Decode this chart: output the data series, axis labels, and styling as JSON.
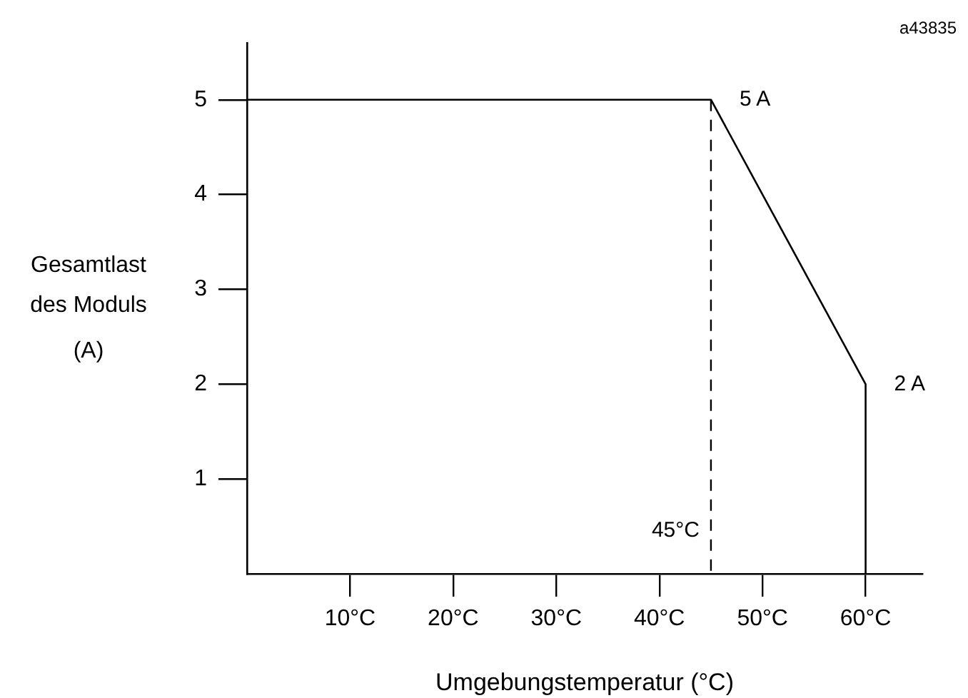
{
  "chart_data": {
    "type": "line",
    "xlabel": "Umgebungstemperatur (°C)",
    "ylabel": "Gesamtlast\ndes Moduls\n(A)",
    "x": [
      0,
      45,
      60,
      60
    ],
    "values": [
      5,
      5,
      2,
      0
    ],
    "color": "#000000",
    "xlim": [
      0,
      65.5
    ],
    "xticks": [
      {
        "value": 10,
        "label": "10°C"
      },
      {
        "value": 20,
        "label": "20°C"
      },
      {
        "value": 30,
        "label": "30°C"
      },
      {
        "value": 40,
        "label": "40°C"
      },
      {
        "value": 50,
        "label": "50°C"
      },
      {
        "value": 60,
        "label": "60°C"
      }
    ],
    "ylim": [
      0,
      5.6
    ],
    "yticks": [
      1,
      2,
      3,
      4,
      5
    ],
    "grid": false,
    "marker": "none",
    "line_style": "solid",
    "ref_lines": [
      {
        "axis": "x",
        "value": 45,
        "label": "45°C",
        "line_style": "dashed",
        "color": "#000000"
      }
    ],
    "annotations": [
      {
        "text": "5 A",
        "x": 45,
        "y": 5
      },
      {
        "text": "2 A",
        "x": 60,
        "y": 2
      },
      "a43835"
    ]
  }
}
